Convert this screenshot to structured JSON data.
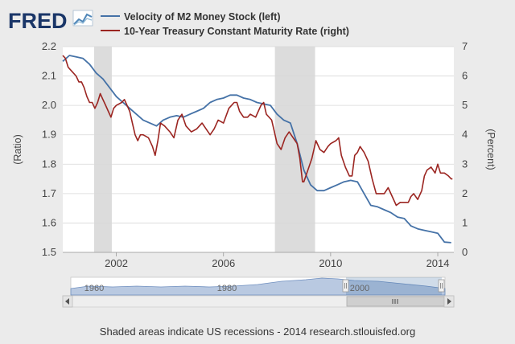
{
  "brand": {
    "logo_text": "FRED",
    "logo_colors": {
      "text": "#1a3668",
      "chart_icon": "#4f86b8"
    }
  },
  "legend": {
    "items": [
      {
        "label": "Velocity of M2 Money Stock (left)",
        "color": "#4572a7"
      },
      {
        "label": "10-Year Treasury Constant Maturity Rate (right)",
        "color": "#9b2521"
      }
    ]
  },
  "footer": {
    "text": "Shaded areas indicate US recessions - 2014 research.stlouisfed.org"
  },
  "navigator": {
    "tick_labels": [
      "1960",
      "1980",
      "2000"
    ],
    "scroll_handle_icon": "grip-icon",
    "left_arrow_icon": "arrow-left-icon",
    "right_arrow_icon": "arrow-right-icon",
    "selection_start": 2000.0,
    "selection_end": 2014.5
  },
  "chart_data": {
    "type": "line",
    "x_axis": {
      "min": 2000.0,
      "max": 2014.6,
      "ticks": [
        2002,
        2006,
        2010,
        2014
      ],
      "tick_labels": [
        "2002",
        "2006",
        "2010",
        "2014"
      ]
    },
    "y_left": {
      "label": "(Ratio)",
      "min": 1.5,
      "max": 2.2,
      "ticks": [
        1.5,
        1.6,
        1.7,
        1.8,
        1.9,
        2.0,
        2.1,
        2.2
      ],
      "tick_labels": [
        "1.5",
        "1.6",
        "1.7",
        "1.8",
        "1.9",
        "2.0",
        "2.1",
        "2.2"
      ]
    },
    "y_right": {
      "label": "(Percent)",
      "min": 0,
      "max": 7,
      "ticks": [
        0,
        1,
        2,
        3,
        4,
        5,
        6,
        7
      ],
      "tick_labels": [
        "0",
        "1",
        "2",
        "3",
        "4",
        "5",
        "6",
        "7"
      ]
    },
    "recessions": [
      [
        2001.17,
        2001.83
      ],
      [
        2007.92,
        2009.42
      ]
    ],
    "recession_color": "#dcdcdc",
    "grid": "horizontal",
    "series": [
      {
        "name": "Velocity of M2 Money Stock (left)",
        "axis": "left",
        "color": "#4572a7",
        "points": [
          [
            2000.0,
            2.15
          ],
          [
            2000.25,
            2.17
          ],
          [
            2000.5,
            2.165
          ],
          [
            2000.75,
            2.16
          ],
          [
            2001.0,
            2.14
          ],
          [
            2001.25,
            2.11
          ],
          [
            2001.5,
            2.09
          ],
          [
            2001.75,
            2.06
          ],
          [
            2002.0,
            2.03
          ],
          [
            2002.25,
            2.01
          ],
          [
            2002.5,
            1.99
          ],
          [
            2002.75,
            1.97
          ],
          [
            2003.0,
            1.95
          ],
          [
            2003.25,
            1.94
          ],
          [
            2003.5,
            1.93
          ],
          [
            2003.75,
            1.95
          ],
          [
            2004.0,
            1.96
          ],
          [
            2004.25,
            1.965
          ],
          [
            2004.5,
            1.96
          ],
          [
            2004.75,
            1.97
          ],
          [
            2005.0,
            1.98
          ],
          [
            2005.25,
            1.99
          ],
          [
            2005.5,
            2.01
          ],
          [
            2005.75,
            2.02
          ],
          [
            2006.0,
            2.025
          ],
          [
            2006.25,
            2.035
          ],
          [
            2006.5,
            2.035
          ],
          [
            2006.75,
            2.025
          ],
          [
            2007.0,
            2.02
          ],
          [
            2007.25,
            2.01
          ],
          [
            2007.5,
            2.005
          ],
          [
            2007.75,
            2.0
          ],
          [
            2008.0,
            1.97
          ],
          [
            2008.25,
            1.95
          ],
          [
            2008.5,
            1.94
          ],
          [
            2008.75,
            1.87
          ],
          [
            2009.0,
            1.78
          ],
          [
            2009.25,
            1.73
          ],
          [
            2009.5,
            1.71
          ],
          [
            2009.75,
            1.71
          ],
          [
            2010.0,
            1.72
          ],
          [
            2010.25,
            1.73
          ],
          [
            2010.5,
            1.74
          ],
          [
            2010.75,
            1.745
          ],
          [
            2011.0,
            1.74
          ],
          [
            2011.25,
            1.7
          ],
          [
            2011.5,
            1.66
          ],
          [
            2011.75,
            1.655
          ],
          [
            2012.0,
            1.645
          ],
          [
            2012.25,
            1.635
          ],
          [
            2012.5,
            1.62
          ],
          [
            2012.75,
            1.615
          ],
          [
            2013.0,
            1.59
          ],
          [
            2013.25,
            1.58
          ],
          [
            2013.5,
            1.575
          ],
          [
            2013.75,
            1.57
          ],
          [
            2014.0,
            1.565
          ],
          [
            2014.25,
            1.535
          ],
          [
            2014.5,
            1.533
          ]
        ]
      },
      {
        "name": "10-Year Treasury Constant Maturity Rate (right)",
        "axis": "right",
        "color": "#9b2521",
        "points": [
          [
            2000.0,
            6.7
          ],
          [
            2000.1,
            6.6
          ],
          [
            2000.2,
            6.3
          ],
          [
            2000.3,
            6.2
          ],
          [
            2000.4,
            6.1
          ],
          [
            2000.5,
            6.0
          ],
          [
            2000.6,
            5.8
          ],
          [
            2000.7,
            5.8
          ],
          [
            2000.8,
            5.6
          ],
          [
            2000.9,
            5.3
          ],
          [
            2001.0,
            5.1
          ],
          [
            2001.1,
            5.1
          ],
          [
            2001.2,
            4.9
          ],
          [
            2001.3,
            5.1
          ],
          [
            2001.4,
            5.4
          ],
          [
            2001.5,
            5.2
          ],
          [
            2001.6,
            5.0
          ],
          [
            2001.7,
            4.8
          ],
          [
            2001.8,
            4.6
          ],
          [
            2001.9,
            4.9
          ],
          [
            2002.0,
            5.0
          ],
          [
            2002.2,
            5.1
          ],
          [
            2002.3,
            5.2
          ],
          [
            2002.4,
            5.0
          ],
          [
            2002.5,
            4.8
          ],
          [
            2002.6,
            4.4
          ],
          [
            2002.7,
            4.0
          ],
          [
            2002.8,
            3.8
          ],
          [
            2002.9,
            4.0
          ],
          [
            2003.0,
            4.0
          ],
          [
            2003.2,
            3.9
          ],
          [
            2003.35,
            3.6
          ],
          [
            2003.45,
            3.3
          ],
          [
            2003.55,
            3.8
          ],
          [
            2003.65,
            4.4
          ],
          [
            2003.8,
            4.3
          ],
          [
            2004.0,
            4.1
          ],
          [
            2004.15,
            3.9
          ],
          [
            2004.3,
            4.5
          ],
          [
            2004.45,
            4.7
          ],
          [
            2004.6,
            4.3
          ],
          [
            2004.8,
            4.1
          ],
          [
            2005.0,
            4.2
          ],
          [
            2005.2,
            4.4
          ],
          [
            2005.35,
            4.2
          ],
          [
            2005.5,
            4.0
          ],
          [
            2005.65,
            4.2
          ],
          [
            2005.8,
            4.5
          ],
          [
            2006.0,
            4.4
          ],
          [
            2006.2,
            4.9
          ],
          [
            2006.4,
            5.1
          ],
          [
            2006.5,
            5.1
          ],
          [
            2006.6,
            4.8
          ],
          [
            2006.75,
            4.6
          ],
          [
            2006.9,
            4.6
          ],
          [
            2007.0,
            4.7
          ],
          [
            2007.2,
            4.6
          ],
          [
            2007.4,
            5.0
          ],
          [
            2007.5,
            5.1
          ],
          [
            2007.6,
            4.7
          ],
          [
            2007.8,
            4.5
          ],
          [
            2007.9,
            4.1
          ],
          [
            2008.0,
            3.7
          ],
          [
            2008.15,
            3.5
          ],
          [
            2008.3,
            3.9
          ],
          [
            2008.45,
            4.1
          ],
          [
            2008.6,
            3.9
          ],
          [
            2008.75,
            3.7
          ],
          [
            2008.85,
            3.2
          ],
          [
            2008.95,
            2.4
          ],
          [
            2009.0,
            2.4
          ],
          [
            2009.15,
            2.8
          ],
          [
            2009.3,
            3.2
          ],
          [
            2009.45,
            3.8
          ],
          [
            2009.6,
            3.5
          ],
          [
            2009.75,
            3.4
          ],
          [
            2009.9,
            3.6
          ],
          [
            2010.0,
            3.7
          ],
          [
            2010.2,
            3.8
          ],
          [
            2010.3,
            3.9
          ],
          [
            2010.4,
            3.3
          ],
          [
            2010.55,
            2.9
          ],
          [
            2010.7,
            2.6
          ],
          [
            2010.8,
            2.6
          ],
          [
            2010.9,
            3.3
          ],
          [
            2011.0,
            3.4
          ],
          [
            2011.1,
            3.6
          ],
          [
            2011.25,
            3.4
          ],
          [
            2011.4,
            3.1
          ],
          [
            2011.55,
            2.5
          ],
          [
            2011.7,
            2.0
          ],
          [
            2011.85,
            2.0
          ],
          [
            2012.0,
            2.0
          ],
          [
            2012.15,
            2.2
          ],
          [
            2012.3,
            1.9
          ],
          [
            2012.45,
            1.6
          ],
          [
            2012.6,
            1.7
          ],
          [
            2012.75,
            1.7
          ],
          [
            2012.9,
            1.7
          ],
          [
            2013.0,
            1.9
          ],
          [
            2013.1,
            2.0
          ],
          [
            2013.25,
            1.8
          ],
          [
            2013.4,
            2.1
          ],
          [
            2013.5,
            2.6
          ],
          [
            2013.6,
            2.8
          ],
          [
            2013.75,
            2.9
          ],
          [
            2013.9,
            2.7
          ],
          [
            2014.0,
            3.0
          ],
          [
            2014.1,
            2.7
          ],
          [
            2014.25,
            2.7
          ],
          [
            2014.4,
            2.6
          ],
          [
            2014.5,
            2.5
          ],
          [
            2014.55,
            2.5
          ]
        ]
      }
    ]
  }
}
